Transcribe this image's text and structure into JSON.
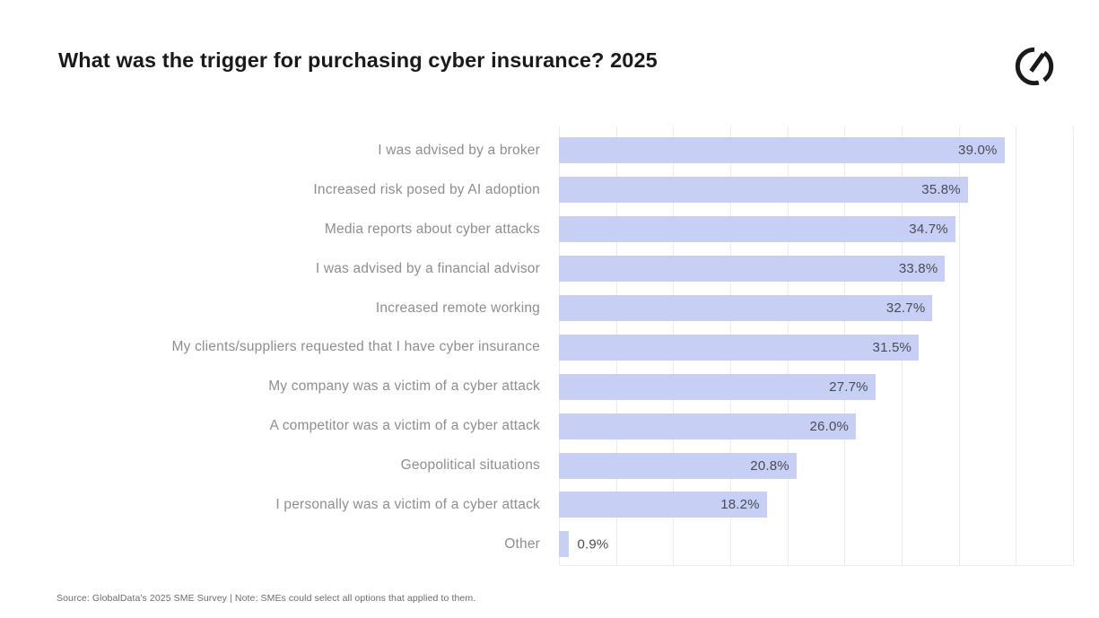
{
  "header": {
    "title": "What was the trigger for purchasing cyber insurance? 2025",
    "logo_name": "globaldata-logo",
    "logo_color": "#1b1b1b"
  },
  "chart_data": {
    "type": "bar",
    "orientation": "horizontal",
    "title": "What was the trigger for purchasing cyber insurance? 2025",
    "categories": [
      "I was advised by a broker",
      "Increased risk posed by AI adoption",
      "Media reports about cyber attacks",
      "I was advised by a financial advisor",
      "Increased remote working",
      "My clients/suppliers requested that I have cyber insurance",
      "My company was a victim of a cyber attack",
      "A competitor was a victim of a cyber attack",
      "Geopolitical situations",
      "I personally was a victim of a cyber attack",
      "Other"
    ],
    "values": [
      39.0,
      35.8,
      34.7,
      33.8,
      32.7,
      31.5,
      27.7,
      26.0,
      20.8,
      18.2,
      0.9
    ],
    "value_labels": [
      "39.0%",
      "35.8%",
      "34.7%",
      "33.8%",
      "32.7%",
      "31.5%",
      "27.7%",
      "26.0%",
      "20.8%",
      "18.2%",
      "0.9%"
    ],
    "xlabel": "",
    "ylabel": "",
    "xlim": [
      0,
      45
    ],
    "grid_step": 5,
    "grid": true,
    "legend": false,
    "bar_color": "#c7cff4",
    "gridline_color": "#ebebee",
    "category_label_color": "#8e8e8e",
    "value_label_color": "#4b4b56",
    "outside_label_threshold_pct": 6
  },
  "footer": {
    "source": "Source: GlobalData's 2025 SME Survey | Note: SMEs could select all options that applied to them."
  }
}
